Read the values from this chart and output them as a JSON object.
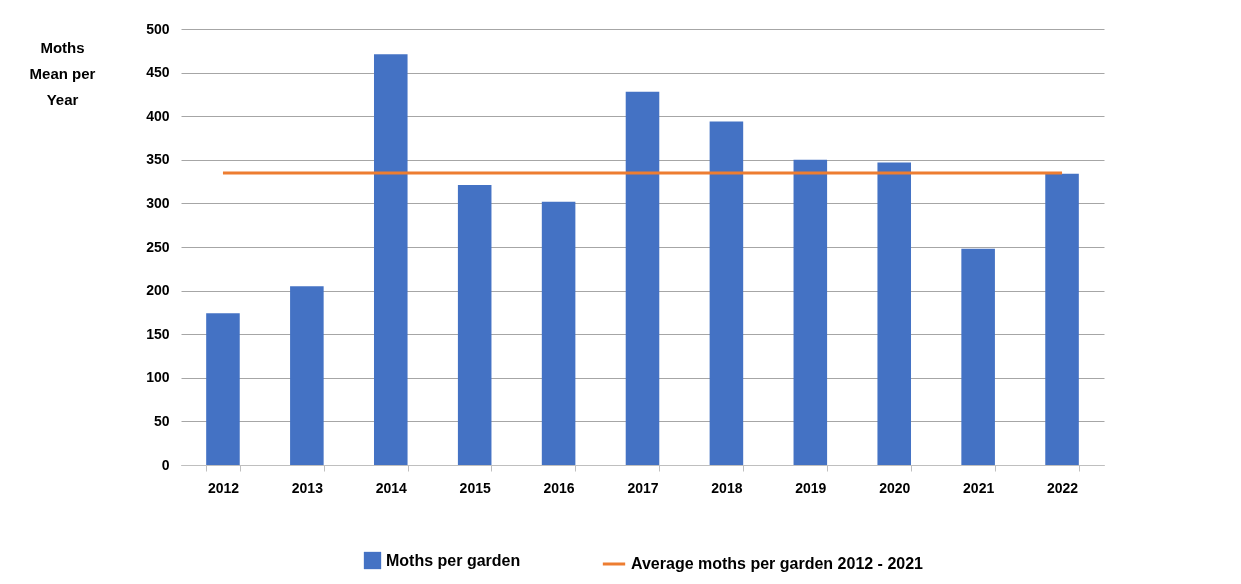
{
  "chart_data": {
    "type": "bar",
    "ylabel": "Moths Mean per Year",
    "categories": [
      "2012",
      "2013",
      "2014",
      "2015",
      "2016",
      "2017",
      "2018",
      "2019",
      "2020",
      "2021",
      "2022"
    ],
    "series": [
      {
        "name": "Moths per garden",
        "color": "#4472c4",
        "values": [
          174,
          205,
          471,
          321,
          302,
          428,
          394,
          350,
          347,
          248,
          334
        ]
      },
      {
        "name": "Average moths per garden 2012 - 2021",
        "type": "line",
        "color": "#ed7d31",
        "values": [
          335,
          335,
          335,
          335,
          335,
          335,
          335,
          335,
          335,
          335,
          335
        ]
      }
    ],
    "ylim": [
      0,
      500
    ],
    "yticks": [
      0,
      50,
      100,
      150,
      200,
      250,
      300,
      350,
      400,
      450,
      500
    ],
    "grid": "y",
    "legend": "bottom"
  }
}
